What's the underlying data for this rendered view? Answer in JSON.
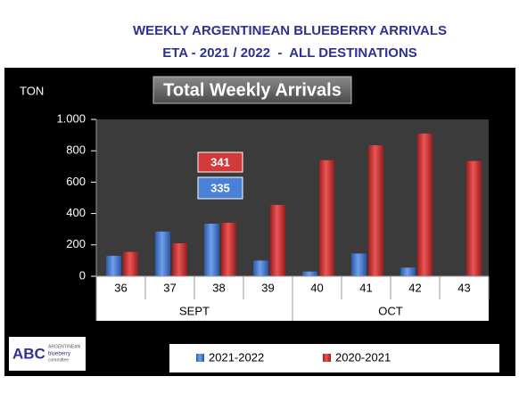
{
  "chart_data": {
    "type": "bar",
    "title": "WEEKLY ARGENTINEAN BLUEBERRY ARRIVALS",
    "subtitle": "ETA - 2021 / 2022  -  ALL DESTINATIONS",
    "panel_title": "Total Weekly Arrivals",
    "ylabel": "TON",
    "categories": [
      "36",
      "37",
      "38",
      "39",
      "40",
      "41",
      "42",
      "43"
    ],
    "category_groups": [
      "SEPT",
      "SEPT",
      "SEPT",
      "SEPT",
      "OCT",
      "OCT",
      "OCT",
      "OCT"
    ],
    "series": [
      {
        "name": "2021-2022",
        "color": "#4a80d6",
        "values": [
          130,
          285,
          335,
          100,
          30,
          145,
          55,
          0
        ]
      },
      {
        "name": "2020-2021",
        "color": "#d23a3a",
        "values": [
          155,
          210,
          341,
          455,
          740,
          835,
          910,
          735
        ]
      }
    ],
    "ylim": [
      0,
      1000
    ],
    "yticks": [
      0,
      200,
      400,
      600,
      800,
      {
        "value": 1000,
        "label": "1.000"
      }
    ]
  },
  "logo": {
    "mark": "ABC",
    "line1": "ARGENTINEAN",
    "line2": "blueberry",
    "line3": "committee"
  }
}
